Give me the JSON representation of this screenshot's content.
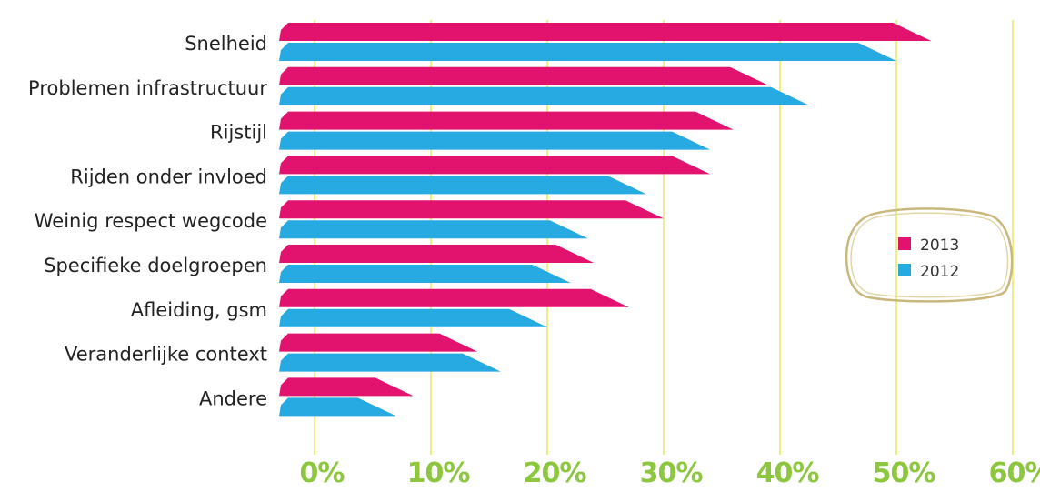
{
  "chart_data": {
    "type": "bar",
    "orientation": "horizontal",
    "categories": [
      "Snelheid",
      "Problemen infrastructuur",
      "Rijstijl",
      "Rijden onder invloed",
      "Weinig respect wegcode",
      "Specifieke doelgroepen",
      "Afleiding, gsm",
      "Veranderlijke context",
      "Andere"
    ],
    "series": [
      {
        "name": "2013",
        "color": "#e2136f",
        "values": [
          53,
          39,
          36,
          34,
          30,
          24,
          27,
          14,
          8.5
        ]
      },
      {
        "name": "2012",
        "color": "#27a9e1",
        "values": [
          50,
          42.5,
          34,
          28.5,
          23.5,
          22,
          20,
          16,
          7
        ]
      }
    ],
    "xlim": [
      0,
      60
    ],
    "x_ticks": [
      "0%",
      "10%",
      "20%",
      "30%",
      "40%",
      "50%",
      "60%"
    ],
    "gridlines": {
      "show": true,
      "color": "#e6e84a"
    },
    "legend": {
      "placement": "right",
      "entries": [
        "2013",
        "2012"
      ],
      "frame_color": "#c9b77c"
    }
  }
}
